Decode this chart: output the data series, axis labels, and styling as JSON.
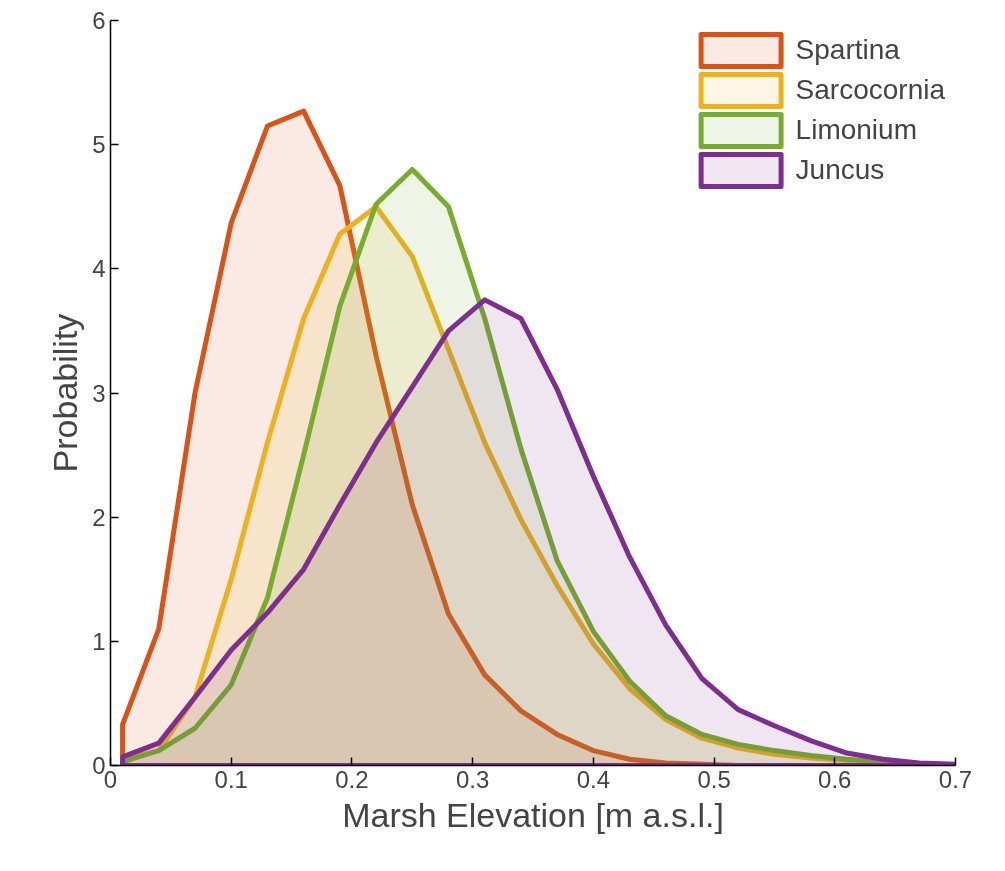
{
  "chart_data": {
    "type": "area",
    "xlabel": "Marsh Elevation [m a.s.l.]",
    "ylabel": "Probability",
    "x": [
      0.01,
      0.04,
      0.07,
      0.1,
      0.13,
      0.16,
      0.19,
      0.22,
      0.25,
      0.28,
      0.31,
      0.34,
      0.37,
      0.4,
      0.43,
      0.46,
      0.49,
      0.52,
      0.55,
      0.58,
      0.61,
      0.64,
      0.67,
      0.7
    ],
    "series": [
      {
        "name": "Spartina",
        "color": "#d95319",
        "values": [
          0.33,
          1.1,
          3.0,
          4.37,
          5.15,
          5.27,
          4.67,
          3.3,
          2.1,
          1.22,
          0.73,
          0.44,
          0.25,
          0.12,
          0.05,
          0.02,
          0.01,
          0,
          0,
          0,
          0,
          0,
          0,
          0
        ]
      },
      {
        "name": "Sarcocornia",
        "color": "#edb120",
        "values": [
          0.05,
          0.12,
          0.55,
          1.5,
          2.6,
          3.6,
          4.28,
          4.5,
          4.1,
          3.35,
          2.6,
          1.98,
          1.45,
          0.98,
          0.62,
          0.37,
          0.22,
          0.14,
          0.09,
          0.06,
          0.04,
          0.02,
          0.01,
          0
        ]
      },
      {
        "name": "Limonium",
        "color": "#77ac30",
        "values": [
          0.03,
          0.12,
          0.3,
          0.65,
          1.35,
          2.5,
          3.7,
          4.52,
          4.8,
          4.5,
          3.6,
          2.55,
          1.65,
          1.08,
          0.68,
          0.4,
          0.25,
          0.17,
          0.12,
          0.08,
          0.05,
          0.03,
          0.01,
          0
        ]
      },
      {
        "name": "Juncus",
        "color": "#7e2f8e",
        "values": [
          0.07,
          0.18,
          0.55,
          0.93,
          1.23,
          1.58,
          2.1,
          2.6,
          3.05,
          3.5,
          3.75,
          3.6,
          3.03,
          2.33,
          1.68,
          1.13,
          0.7,
          0.45,
          0.32,
          0.2,
          0.1,
          0.05,
          0.02,
          0.01
        ]
      }
    ],
    "xlim": [
      0,
      0.7
    ],
    "xticks": [
      0,
      0.1,
      0.2,
      0.3,
      0.4,
      0.5,
      0.6,
      0.7
    ],
    "ylim": [
      0,
      6
    ],
    "yticks": [
      0,
      1,
      2,
      3,
      4,
      5,
      6
    ],
    "grid": false,
    "legend": "top right"
  }
}
